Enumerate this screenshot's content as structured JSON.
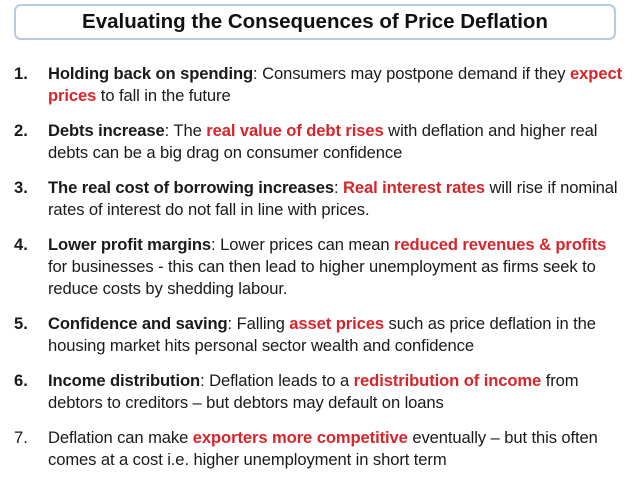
{
  "title": "Evaluating the Consequences of Price Deflation",
  "colors": {
    "highlight": "#d8252b",
    "title_border": "#b9c9e0",
    "text": "#1a1a1a"
  },
  "points": [
    {
      "number": "1.",
      "heading": "Holding back on spending",
      "sep": ": ",
      "t1": "Consumers may postpone demand if they ",
      "hl": "expect prices",
      "t2": " to fall in the future"
    },
    {
      "number": "2.",
      "heading": "Debts increase",
      "sep": ": ",
      "t1": "The ",
      "hl": "real value of debt rises",
      "t2": " with deflation and higher real debts can be a big drag on consumer confidence"
    },
    {
      "number": "3.",
      "heading": "The real cost of borrowing increases",
      "sep": ": ",
      "t1": "",
      "hl": "Real interest rates",
      "t2": " will rise if nominal rates of interest do not fall in line with prices."
    },
    {
      "number": "4.",
      "heading": "Lower profit margins",
      "sep": ": ",
      "t1": "Lower prices can mean ",
      "hl": "reduced revenues & profits",
      "t2": " for businesses - this can then lead to higher unemployment as firms seek to reduce costs by shedding labour."
    },
    {
      "number": "5.",
      "heading": "Confidence and saving",
      "sep": ": ",
      "t1": "Falling ",
      "hl": "asset prices",
      "t2": " such as price deflation in the housing market hits personal sector wealth and confidence"
    },
    {
      "number": "6.",
      "heading": "Income distribution",
      "sep": ": ",
      "t1": "Deflation leads to a ",
      "hl": "redistribution of income",
      "t2": " from debtors to creditors – but debtors may default on loans"
    },
    {
      "number": "7.",
      "t1": "Deflation can make ",
      "hl": "exporters more competitive",
      "t2": " eventually – but this often comes at a cost i.e. higher unemployment in short term"
    }
  ]
}
